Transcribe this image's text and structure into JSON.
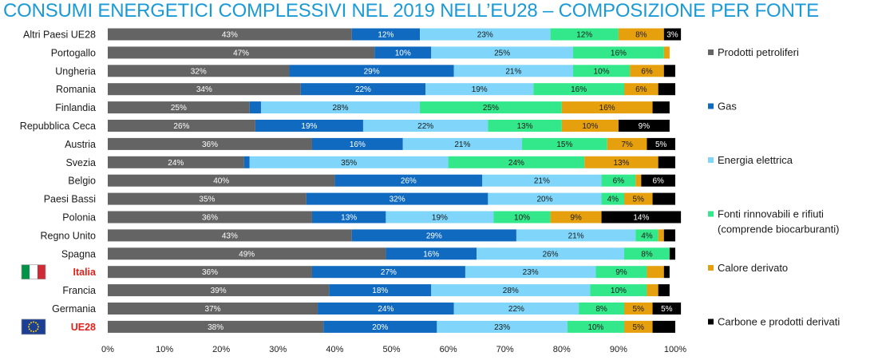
{
  "title": "CONSUMI ENERGETICI COMPLESSIVI NEL 2019 NELL’EU28 – COMPOSIZIONE PER FONTE",
  "chart_data": {
    "type": "bar",
    "orientation": "horizontal",
    "stacked": true,
    "percent_stacked": true,
    "title": "CONSUMI ENERGETICI COMPLESSIVI NEL 2019 NELL’EU28 – COMPOSIZIONE PER FONTE",
    "categories": [
      "Altri Paesi UE28",
      "Portogallo",
      "Ungheria",
      "Romania",
      "Finlandia",
      "Repubblica Ceca",
      "Austria",
      "Svezia",
      "Belgio",
      "Paesi Bassi",
      "Polonia",
      "Regno Unito",
      "Spagna",
      "Italia",
      "Francia",
      "Germania",
      "UE28"
    ],
    "highlighted_categories": [
      "Italia",
      "UE28"
    ],
    "series": [
      {
        "name": "Prodotti petroliferi",
        "color": "#646464",
        "values": [
          43,
          47,
          32,
          34,
          25,
          26,
          36,
          24,
          40,
          35,
          36,
          43,
          49,
          36,
          39,
          37,
          38
        ]
      },
      {
        "name": "Gas",
        "color": "#0f6ac0",
        "values": [
          12,
          10,
          29,
          22,
          2,
          19,
          16,
          1,
          26,
          32,
          13,
          29,
          16,
          27,
          18,
          24,
          20
        ]
      },
      {
        "name": "Energia elettrica",
        "color": "#7fd6fa",
        "values": [
          23,
          25,
          21,
          19,
          28,
          22,
          21,
          35,
          21,
          20,
          19,
          21,
          26,
          23,
          28,
          22,
          23
        ]
      },
      {
        "name": "Fonti rinnovabili e rifiuti (comprende biocarburanti)",
        "color": "#33e88a",
        "values": [
          12,
          16,
          10,
          16,
          25,
          13,
          15,
          24,
          6,
          4,
          10,
          4,
          8,
          9,
          10,
          8,
          10
        ]
      },
      {
        "name": "Calore derivato",
        "color": "#e6a00e",
        "values": [
          8,
          1,
          6,
          6,
          16,
          10,
          7,
          13,
          1,
          5,
          9,
          1,
          0,
          3,
          2,
          5,
          5
        ]
      },
      {
        "name": "Carbone e prodotti derivati",
        "color": "#000000",
        "values": [
          3,
          0,
          2,
          3,
          3,
          9,
          5,
          3,
          6,
          4,
          14,
          2,
          1,
          1,
          2,
          5,
          4
        ]
      }
    ],
    "data_labels": {
      "Prodotti petroliferi": [
        "43%",
        "47%",
        "32%",
        "34%",
        "25%",
        "26%",
        "36%",
        "24%",
        "40%",
        "35%",
        "36%",
        "43%",
        "49%",
        "36%",
        "39%",
        "37%",
        "38%"
      ],
      "Gas": [
        "12%",
        "10%",
        "29%",
        "22%",
        "",
        "19%",
        "16%",
        "",
        "26%",
        "32%",
        "13%",
        "29%",
        "16%",
        "27%",
        "18%",
        "24%",
        "20%"
      ],
      "Energia elettrica": [
        "23%",
        "25%",
        "21%",
        "19%",
        "28%",
        "22%",
        "21%",
        "35%",
        "21%",
        "20%",
        "19%",
        "21%",
        "26%",
        "23%",
        "28%",
        "22%",
        "23%"
      ],
      "Fonti rinnovabili e rifiuti (comprende biocarburanti)": [
        "12%",
        "16%",
        "10%",
        "16%",
        "25%",
        "13%",
        "15%",
        "24%",
        "6%",
        "4%",
        "10%",
        "4%",
        "8%",
        "9%",
        "10%",
        "8%",
        "10%"
      ],
      "Calore derivato": [
        "8%",
        "",
        "6%",
        "6%",
        "16%",
        "10%",
        "7%",
        "13%",
        "",
        "5%",
        "9%",
        "",
        "",
        "",
        "",
        "5%",
        "5%"
      ],
      "Carbone e prodotti derivati": [
        "3%",
        "",
        "",
        "",
        "",
        "9%",
        "5%",
        "",
        "6%",
        "",
        "14%",
        "",
        "",
        "",
        "",
        "5%",
        ""
      ]
    },
    "x_ticks": [
      "0%",
      "10%",
      "20%",
      "30%",
      "40%",
      "50%",
      "60%",
      "70%",
      "80%",
      "90%",
      "100%"
    ],
    "xlim": [
      0,
      100
    ],
    "legend": {
      "placement": "right",
      "entries": [
        {
          "lines": [
            "Prodotti petroliferi"
          ],
          "color": "#646464"
        },
        {
          "lines": [
            "Gas"
          ],
          "color": "#0f6ac0"
        },
        {
          "lines": [
            "Energia elettrica"
          ],
          "color": "#7fd6fa"
        },
        {
          "lines": [
            "Fonti rinnovabili e rifiuti",
            "(comprende biocarburanti)"
          ],
          "color": "#33e88a"
        },
        {
          "lines": [
            "Calore derivato"
          ],
          "color": "#e6a00e"
        },
        {
          "lines": [
            "Carbone e prodotti derivati"
          ],
          "color": "#000000"
        }
      ]
    },
    "grid": false,
    "flags": {
      "Italia": "italy-flag",
      "UE28": "eu-flag"
    }
  }
}
